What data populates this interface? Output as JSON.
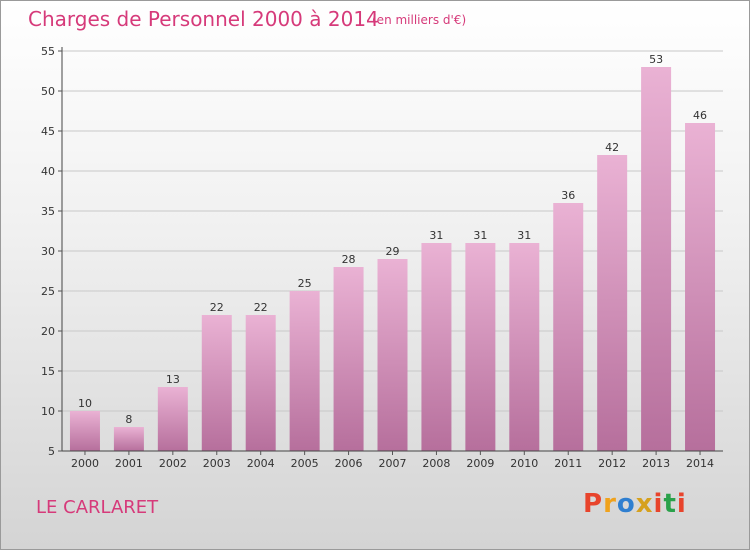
{
  "title": "Charges de Personnel 2000 à 2014",
  "subtitle": "(en milliers d'€)",
  "place_name": "LE CARLARET",
  "logo_text": "Proxiti",
  "colors": {
    "title": "#d63a7a",
    "bar_top": "#eab2d4",
    "bar_bottom": "#b66f9c",
    "grid": "#c8c8c8",
    "logo_letters": [
      "#e8442c",
      "#f0a21c",
      "#2f7fd0",
      "#d6a11e",
      "#e8442c",
      "#2aa14a",
      "#e8442c"
    ]
  },
  "chart_data": {
    "type": "bar",
    "title": "Charges de Personnel 2000 à 2014",
    "subtitle": "(en milliers d'€)",
    "categories": [
      "2000",
      "2001",
      "2002",
      "2003",
      "2004",
      "2005",
      "2006",
      "2007",
      "2008",
      "2009",
      "2010",
      "2011",
      "2012",
      "2013",
      "2014"
    ],
    "values": [
      10,
      8,
      13,
      22,
      22,
      25,
      28,
      29,
      31,
      31,
      31,
      36,
      42,
      53,
      46
    ],
    "ylim": [
      5,
      55
    ],
    "yticks": [
      5,
      10,
      15,
      20,
      25,
      30,
      35,
      40,
      45,
      50,
      55
    ],
    "grid": true,
    "xlabel": "",
    "ylabel": ""
  }
}
